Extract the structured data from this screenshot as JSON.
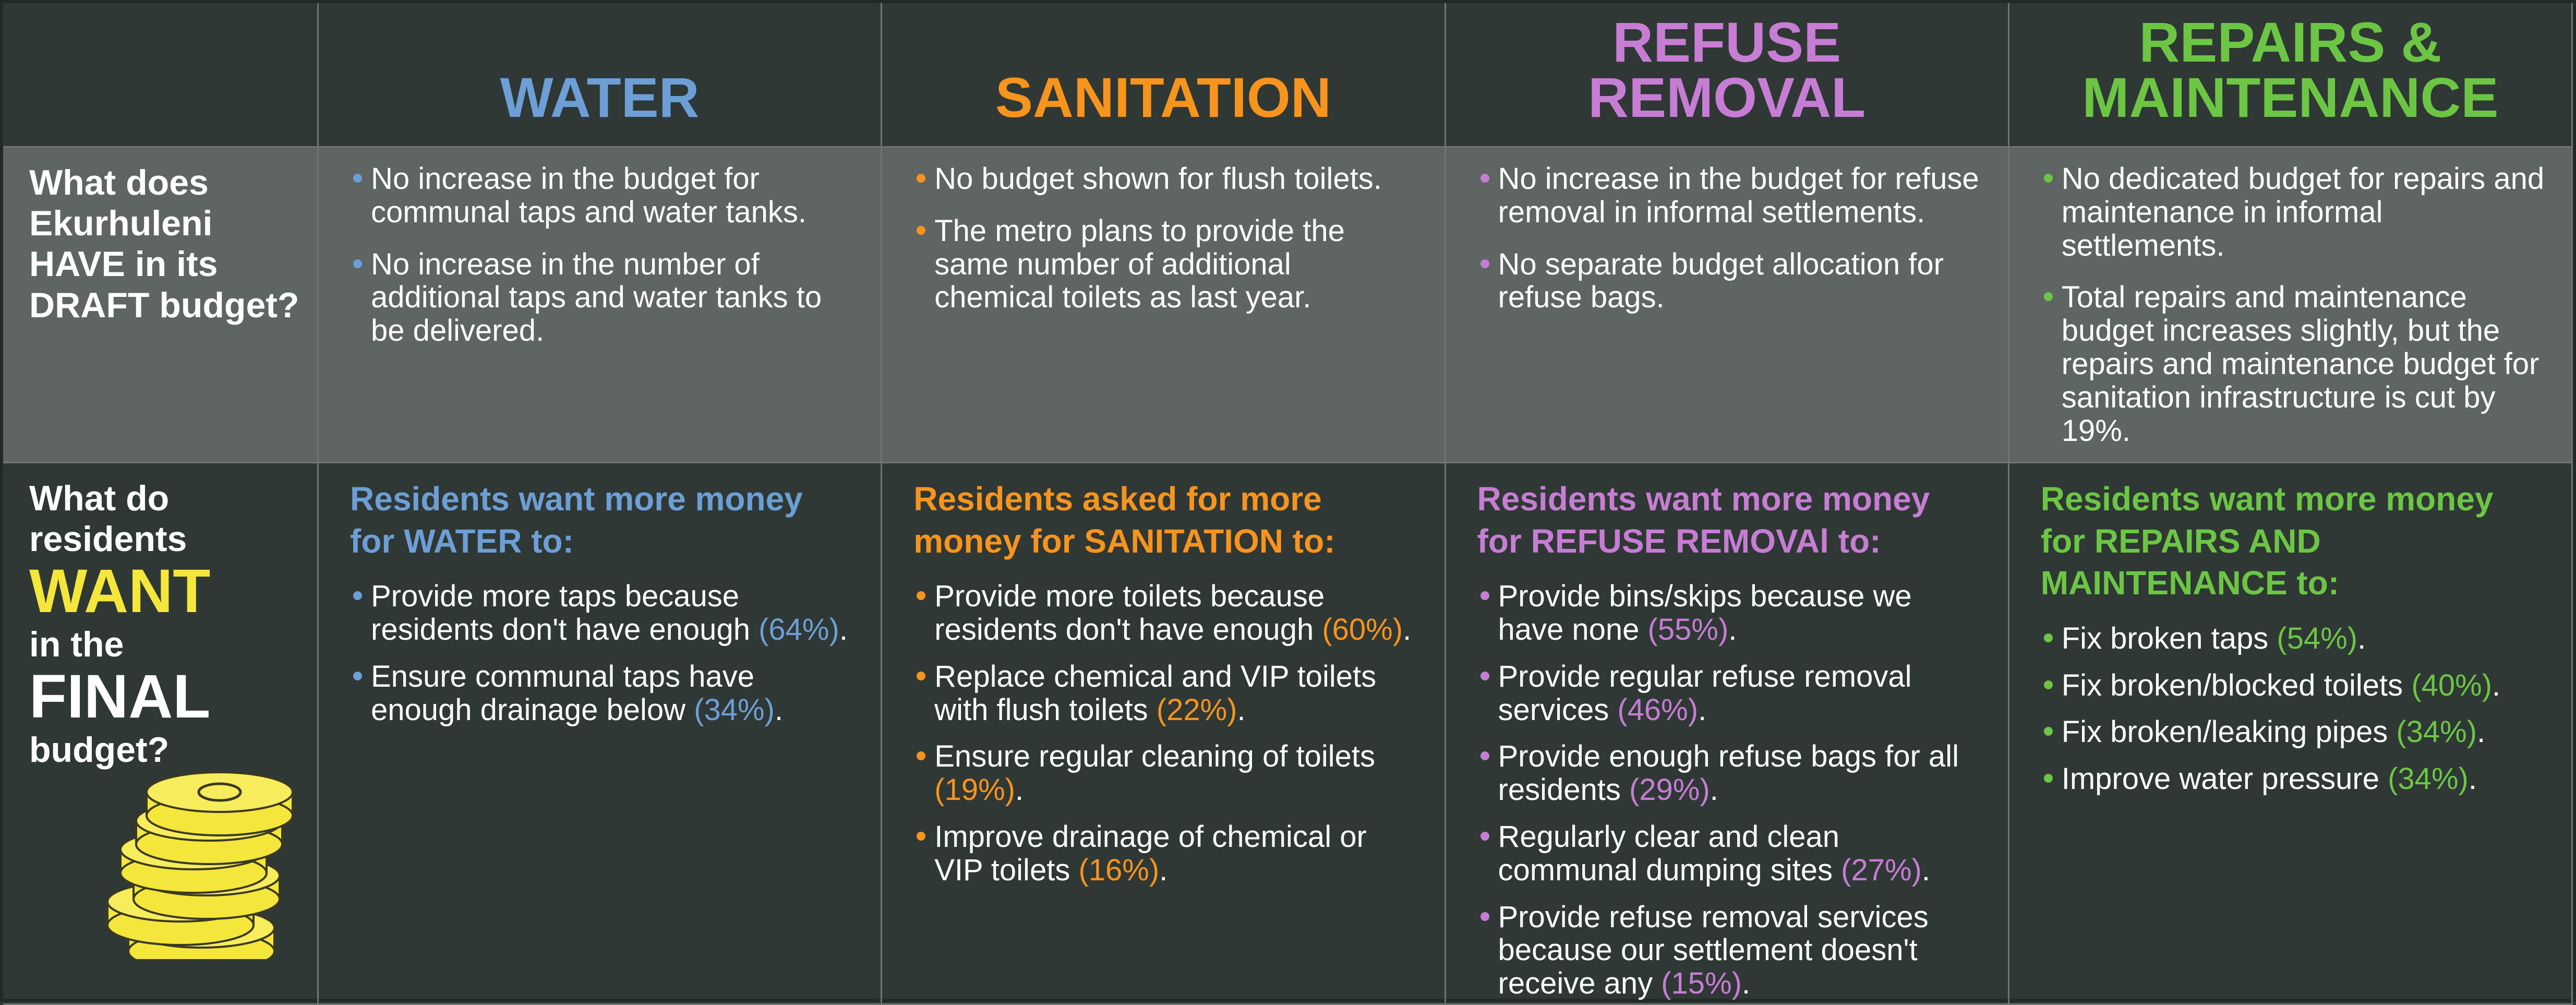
{
  "columns": [
    {
      "title": [
        "WATER"
      ],
      "color": "#6d9fd6",
      "have": [
        "No increase in the budget for communal taps and water tanks.",
        "No increase in the number of additional taps and water tanks to be delivered."
      ],
      "want_heading": "Residents want more money for WATER to:",
      "want": [
        {
          "text": "Provide more taps because residents don't have enough",
          "highlight": "(64%)",
          "after": "."
        },
        {
          "text": "Ensure communal taps have enough drainage below",
          "highlight": "(34%)",
          "after": "."
        }
      ]
    },
    {
      "title": [
        "SANITATION"
      ],
      "color": "#f7941d",
      "have": [
        "No budget shown for flush toilets.",
        "The metro plans to provide the same number of additional chemical toilets as last year."
      ],
      "want_heading": "Residents asked for more money for SANITATION to:",
      "want": [
        {
          "text": "Provide more toilets because residents don't have enough",
          "highlight": "(60%)",
          "after": "."
        },
        {
          "text": "Replace chemical and VIP toilets with flush toilets",
          "highlight": "(22%)",
          "after": "."
        },
        {
          "text": "Ensure regular cleaning of toilets",
          "highlight": "(19%)",
          "after": "."
        },
        {
          "text": "Improve drainage of chemical or VIP toilets",
          "highlight": "(16%)",
          "after": "."
        }
      ]
    },
    {
      "title": [
        "REFUSE",
        "REMOVAL"
      ],
      "color": "#c77dd4",
      "have": [
        "No increase in the budget for refuse removal in informal settlements.",
        "No separate budget allocation for refuse bags."
      ],
      "want_heading": "Residents want more money for REFUSE REMOVAl to:",
      "want": [
        {
          "text": "Provide bins/skips because we have none",
          "highlight": "(55%)",
          "after": "."
        },
        {
          "text": "Provide regular refuse removal services",
          "highlight": "(46%)",
          "after": "."
        },
        {
          "text": "Provide enough refuse bags for all residents",
          "highlight": "(29%)",
          "after": "."
        },
        {
          "text": "Regularly clear and clean communal dumping sites",
          "highlight": "(27%)",
          "after": "."
        },
        {
          "text": "Provide refuse removal services because our settlement doesn't receive any",
          "highlight": "(15%)",
          "after": "."
        }
      ]
    },
    {
      "title": [
        "REPAIRS &",
        "MAINTENANCE"
      ],
      "color": "#6cc644",
      "have": [
        "No dedicated budget for repairs and maintenance in informal settlements.",
        "Total repairs and maintenance budget increases slightly, but the repairs and maintenance budget for sanitation infrastructure is cut by 19%."
      ],
      "want_heading": "Residents want more money for REPAIRS AND MAINTENANCE to:",
      "want": [
        {
          "text": "Fix broken taps",
          "highlight": "(54%)",
          "after": "."
        },
        {
          "text": "Fix broken/blocked toilets",
          "highlight": "(40%)",
          "after": "."
        },
        {
          "text": "Fix broken/leaking pipes",
          "highlight": "(34%)",
          "after": "."
        },
        {
          "text": "Improve water pressure",
          "highlight": "(34%)",
          "after": "."
        }
      ]
    }
  ],
  "rows": {
    "have_label": [
      "What does",
      "Ekurhuleni",
      "HAVE in its",
      "DRAFT budget?"
    ],
    "want_label": [
      "What do",
      "residents",
      "WANT",
      "in the",
      "FINAL",
      "budget?"
    ]
  }
}
